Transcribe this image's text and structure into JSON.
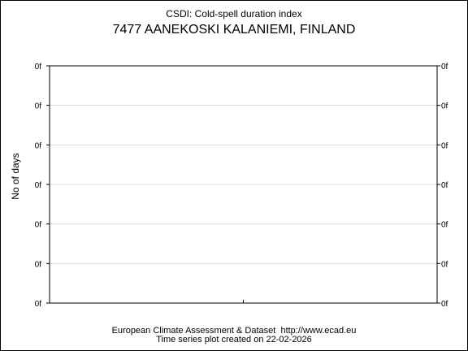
{
  "chart_data": {
    "type": "line",
    "title": "CSDI: Cold-spell duration index",
    "subtitle": "7477 AANEKOSKI KALANIEMI, FINLAND",
    "ylabel": "No of days",
    "xlabel": "",
    "x": [],
    "series": [],
    "y_tick_labels": [
      "0f",
      "0f",
      "0f",
      "0f",
      "0f",
      "0f",
      "0f"
    ],
    "grid": true,
    "legend": "none"
  },
  "footer": {
    "line1": "European Climate Assessment & Dataset  http://www.ecad.eu",
    "line2": "Time series plot created on 22-02-2026"
  },
  "colors": {
    "grid": "#d9d9d9",
    "axes": "#000000",
    "text": "#000000"
  }
}
